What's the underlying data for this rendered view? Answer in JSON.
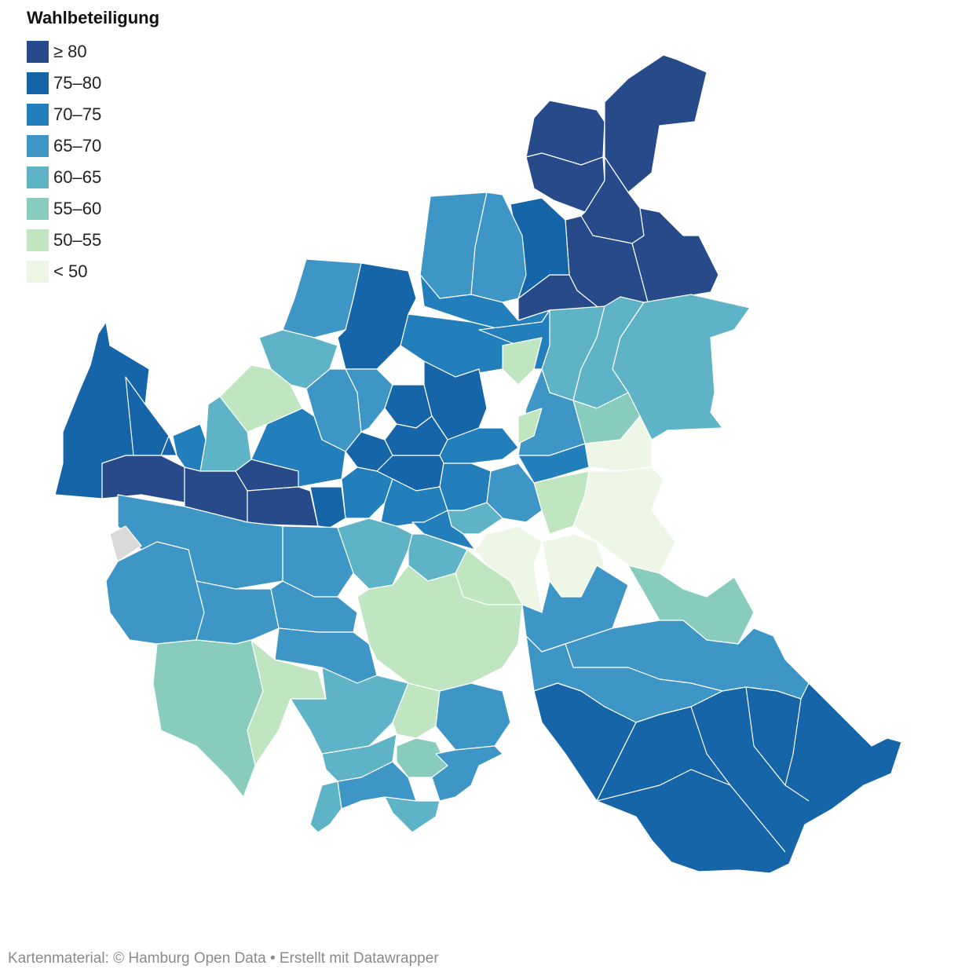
{
  "legend": {
    "title": "Wahlbeteiligung",
    "items": [
      {
        "label": "≥ 80",
        "color": "#264a8a"
      },
      {
        "label": "75–80",
        "color": "#1565a8"
      },
      {
        "label": "70–75",
        "color": "#237fbc"
      },
      {
        "label": "65–70",
        "color": "#3e96c6"
      },
      {
        "label": "60–65",
        "color": "#5eb3c7"
      },
      {
        "label": "55–60",
        "color": "#88ccbe"
      },
      {
        "label": "50–55",
        "color": "#bfe5c1"
      },
      {
        "label": "< 50",
        "color": "#eef7e6"
      }
    ],
    "no_data_color": "#d9d9d9"
  },
  "footer": "Kartenmaterial: © Hamburg Open Data • Erstellt mit Datawrapper"
}
